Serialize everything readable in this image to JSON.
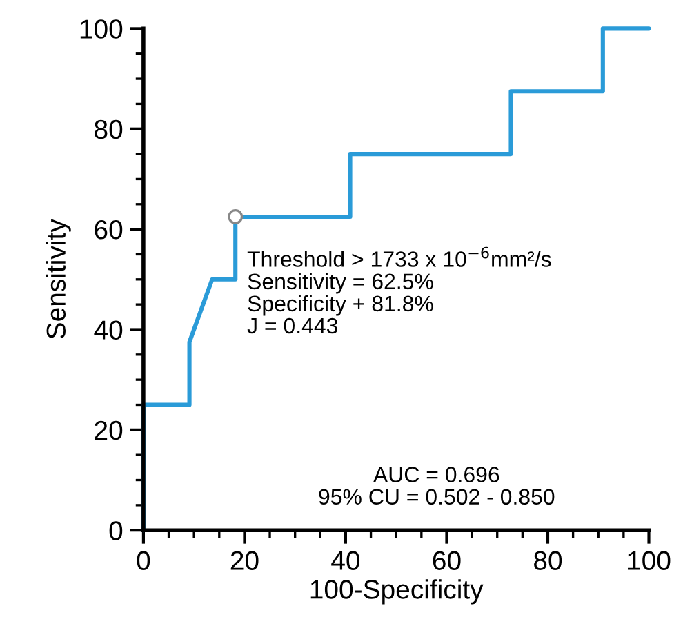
{
  "chart_data": {
    "type": "line",
    "xlabel": "100-Specificity",
    "ylabel": "Sensitivity",
    "series": [
      {
        "color": "#2a9bd8",
        "x": [
          0,
          0,
          9.1,
          9.1,
          13.6,
          18.2,
          18.2,
          40.9,
          40.9,
          72.7,
          72.7,
          90.9,
          90.9,
          100
        ],
        "values": [
          0,
          25,
          25,
          37.5,
          50,
          50,
          62.5,
          62.5,
          75,
          75,
          87.5,
          87.5,
          100,
          100
        ]
      },
      {
        "type": "scatter",
        "color": "#888888",
        "x": [
          18.2
        ],
        "values": [
          62.5
        ],
        "marker": "circle"
      }
    ],
    "xlim": [
      0,
      100
    ],
    "ylim": [
      0,
      100
    ],
    "xticks": [
      0,
      20,
      40,
      60,
      80,
      100
    ],
    "yticks": [
      0,
      20,
      40,
      60,
      80,
      100
    ],
    "grid": false,
    "legend": false,
    "annotations": [
      "Threshold > 1733 x 10$^{−6}$mm²/s\nSensitivity = 62.5%\nSpecificity + 81.8%\nJ = 0.443",
      "AUC = 0.696\n95% CU = 0.502 - 0.850"
    ]
  }
}
